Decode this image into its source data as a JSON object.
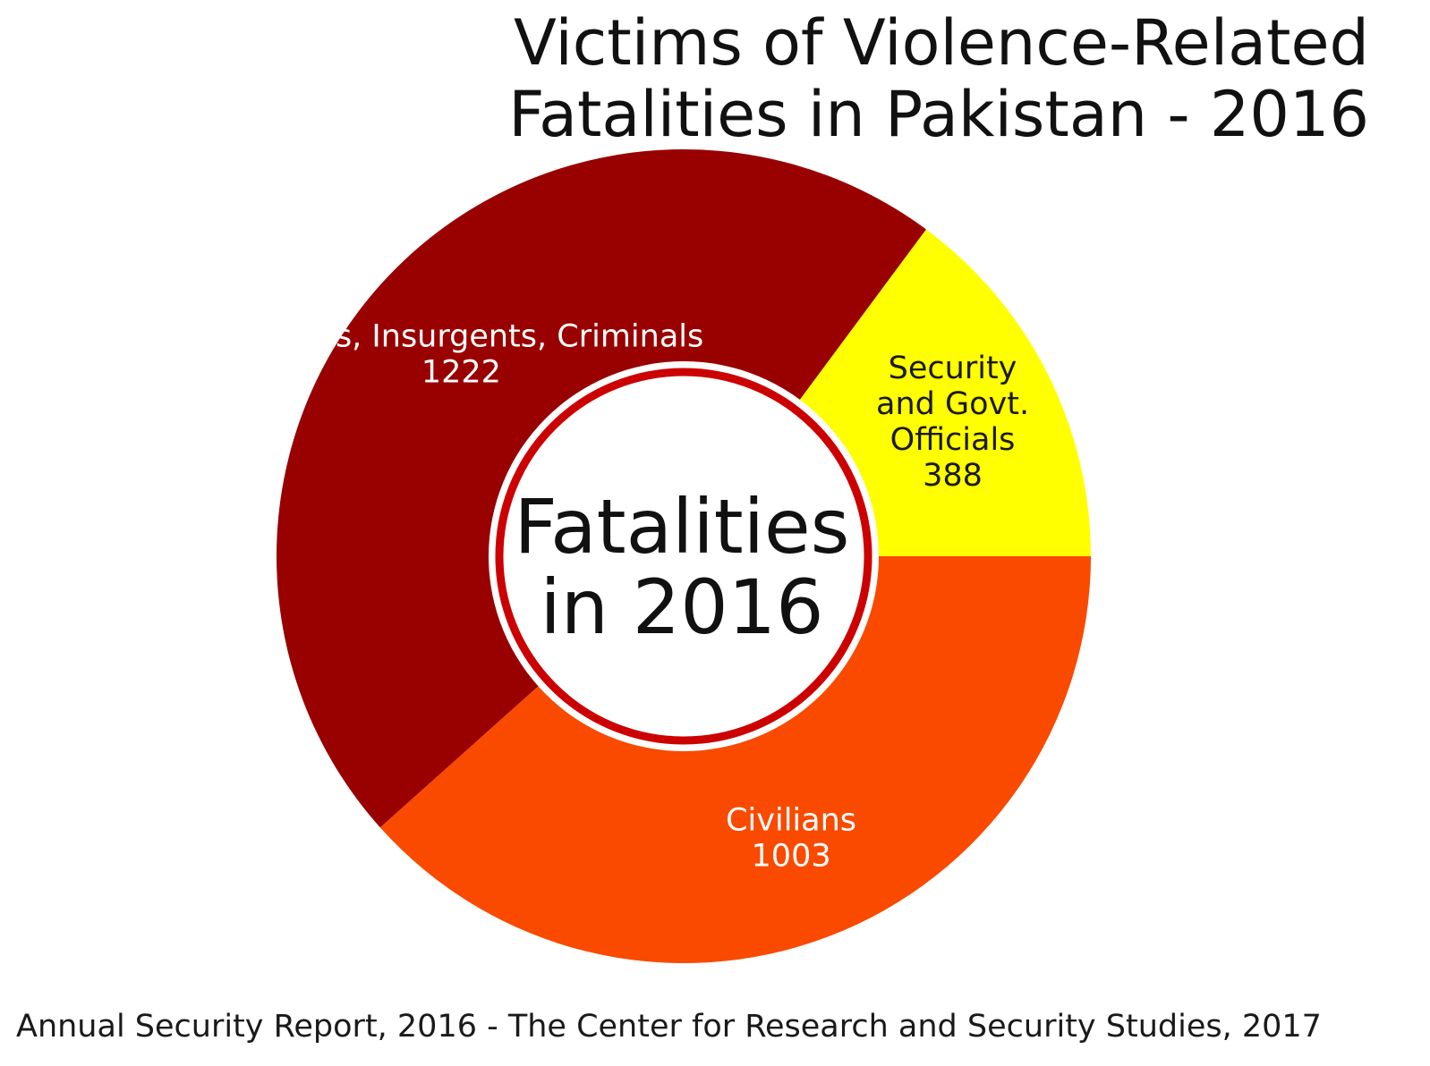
{
  "title_lines": [
    "Victims of Violence-Related",
    "Fatalities in Pakistan - 2016"
  ],
  "center_label_lines": [
    "Fatalities",
    "in 2016"
  ],
  "caption": "Annual Security Report, 2016 - The Center for Research and Security Studies, 2017",
  "chart_data": {
    "type": "pie",
    "donut": true,
    "title": "Victims of Violence-Related Fatalities in Pakistan - 2016",
    "center_text": "Fatalities in 2016",
    "slices": [
      {
        "label_lines": [
          "Security",
          "and Govt.",
          "Officials"
        ],
        "value": 388,
        "color": "#ffff00",
        "label_color": "#1a1a1a"
      },
      {
        "label_lines": [
          "Militants, Insurgents, Criminals"
        ],
        "value": 1222,
        "color": "#990000",
        "label_color": "#ffffff"
      },
      {
        "label_lines": [
          "Civilians"
        ],
        "value": 1003,
        "color": "#f94a00",
        "label_color": "#ffffff"
      }
    ],
    "start_angle_deg": 90,
    "direction": "counterclockwise",
    "legend": "none",
    "source": "Annual Security Report, 2016 - The Center for Research and Security Studies, 2017"
  }
}
